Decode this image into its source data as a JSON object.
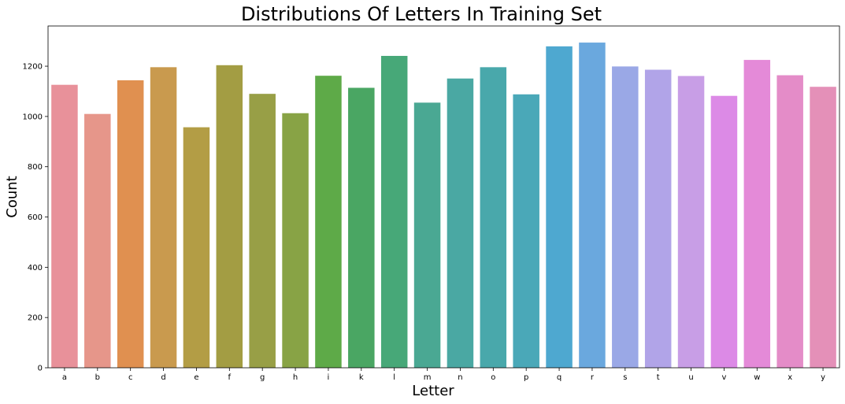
{
  "chart_data": {
    "type": "bar",
    "title": "Distributions Of Letters In Training Set",
    "xlabel": "Letter",
    "ylabel": "Count",
    "ylim": [
      0,
      1360
    ],
    "yticks": [
      0,
      200,
      400,
      600,
      800,
      1000,
      1200
    ],
    "grid": false,
    "categories": [
      "a",
      "b",
      "c",
      "d",
      "e",
      "f",
      "g",
      "h",
      "i",
      "k",
      "l",
      "m",
      "n",
      "o",
      "p",
      "q",
      "r",
      "s",
      "t",
      "u",
      "v",
      "w",
      "x",
      "y"
    ],
    "values": [
      1126,
      1010,
      1144,
      1196,
      957,
      1204,
      1090,
      1013,
      1162,
      1114,
      1241,
      1055,
      1151,
      1196,
      1088,
      1279,
      1294,
      1199,
      1186,
      1161,
      1082,
      1225,
      1164,
      1118
    ],
    "colors": [
      "#e8919a",
      "#e6968a",
      "#e09050",
      "#c99a4e",
      "#b39d45",
      "#a39d43",
      "#989f46",
      "#88a345",
      "#5eaa48",
      "#4aa663",
      "#47a878",
      "#4aa893",
      "#4aa8a3",
      "#49a8ab",
      "#4aa8b8",
      "#4ea8d0",
      "#6aa8de",
      "#9aa8e6",
      "#b1a4e8",
      "#c89ee6",
      "#dc8ae6",
      "#e48ad8",
      "#e48cc8",
      "#e490b8"
    ]
  }
}
